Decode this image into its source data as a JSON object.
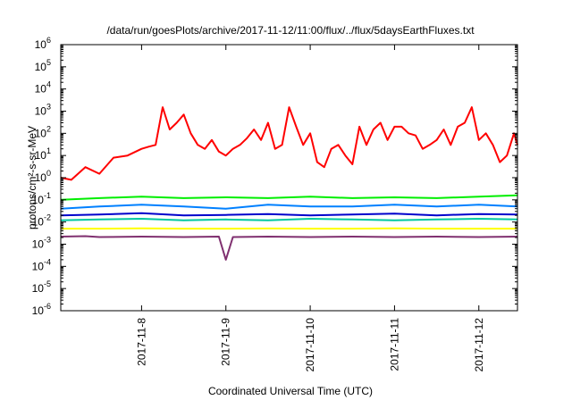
{
  "chart_data": {
    "type": "line",
    "title": "/data/run/goesPlots/archive/2017-11-12/11:00/flux/../flux/5daysEarthFluxes.txt",
    "xlabel": "Coordinated Universal Time (UTC)",
    "ylabel": "protons/cm²-s-sr-MeV",
    "y_scale": "log",
    "ylim_exponents": [
      -6,
      6
    ],
    "y_ticks": [
      {
        "base": "10",
        "exp": "-6"
      },
      {
        "base": "10",
        "exp": "-5"
      },
      {
        "base": "10",
        "exp": "-4"
      },
      {
        "base": "10",
        "exp": "-3"
      },
      {
        "base": "10",
        "exp": "-2"
      },
      {
        "base": "10",
        "exp": "-1"
      },
      {
        "base": "10",
        "exp": "0"
      },
      {
        "base": "10",
        "exp": "1"
      },
      {
        "base": "10",
        "exp": "2"
      },
      {
        "base": "10",
        "exp": "3"
      },
      {
        "base": "10",
        "exp": "4"
      },
      {
        "base": "10",
        "exp": "5"
      },
      {
        "base": "10",
        "exp": "6"
      }
    ],
    "x_ticks": [
      "2017-11-8",
      "2017-11-9",
      "2017-11-10",
      "2017-11-11",
      "2017-11-12"
    ],
    "xlim": [
      "2017-11-07T01:00",
      "2017-11-12T11:00"
    ],
    "grid": false,
    "legend": "none",
    "series": [
      {
        "color": "#ff0000",
        "x": [
          "2017-11-07T01:00",
          "2017-11-07T04:00",
          "2017-11-07T08:00",
          "2017-11-07T12:00",
          "2017-11-07T16:00",
          "2017-11-07T20:00",
          "2017-11-08T00:00",
          "2017-11-08T02:00",
          "2017-11-08T04:00",
          "2017-11-08T06:00",
          "2017-11-08T08:00",
          "2017-11-08T10:00",
          "2017-11-08T12:00",
          "2017-11-08T14:00",
          "2017-11-08T16:00",
          "2017-11-08T18:00",
          "2017-11-08T20:00",
          "2017-11-08T22:00",
          "2017-11-09T00:00",
          "2017-11-09T02:00",
          "2017-11-09T04:00",
          "2017-11-09T06:00",
          "2017-11-09T08:00",
          "2017-11-09T10:00",
          "2017-11-09T12:00",
          "2017-11-09T14:00",
          "2017-11-09T16:00",
          "2017-11-09T18:00",
          "2017-11-09T20:00",
          "2017-11-09T22:00",
          "2017-11-10T00:00",
          "2017-11-10T02:00",
          "2017-11-10T04:00",
          "2017-11-10T06:00",
          "2017-11-10T08:00",
          "2017-11-10T10:00",
          "2017-11-10T12:00",
          "2017-11-10T14:00",
          "2017-11-10T16:00",
          "2017-11-10T18:00",
          "2017-11-10T20:00",
          "2017-11-10T22:00",
          "2017-11-11T00:00",
          "2017-11-11T02:00",
          "2017-11-11T04:00",
          "2017-11-11T06:00",
          "2017-11-11T08:00",
          "2017-11-11T10:00",
          "2017-11-11T12:00",
          "2017-11-11T14:00",
          "2017-11-11T16:00",
          "2017-11-11T18:00",
          "2017-11-11T20:00",
          "2017-11-11T22:00",
          "2017-11-12T00:00",
          "2017-11-12T02:00",
          "2017-11-12T04:00",
          "2017-11-12T06:00",
          "2017-11-12T08:00",
          "2017-11-12T10:00",
          "2017-11-12T11:00"
        ],
        "y": [
          1,
          0.8,
          3,
          1.5,
          8,
          10,
          20,
          25,
          30,
          1500,
          150,
          300,
          700,
          100,
          30,
          20,
          50,
          15,
          10,
          20,
          30,
          60,
          150,
          50,
          300,
          20,
          30,
          1500,
          200,
          30,
          100,
          5,
          3,
          20,
          30,
          10,
          4,
          200,
          30,
          150,
          300,
          50,
          200,
          200,
          100,
          80,
          20,
          30,
          50,
          150,
          30,
          200,
          300,
          1500,
          50,
          100,
          30,
          5,
          10,
          100,
          30
        ]
      },
      {
        "color": "#00ee00",
        "x": [
          "2017-11-07T01:00",
          "2017-11-07T12:00",
          "2017-11-08T00:00",
          "2017-11-08T12:00",
          "2017-11-09T00:00",
          "2017-11-09T12:00",
          "2017-11-10T00:00",
          "2017-11-10T12:00",
          "2017-11-11T00:00",
          "2017-11-11T12:00",
          "2017-11-12T00:00",
          "2017-11-12T11:00"
        ],
        "y": [
          0.1,
          0.12,
          0.14,
          0.12,
          0.13,
          0.12,
          0.14,
          0.12,
          0.13,
          0.12,
          0.14,
          0.16
        ]
      },
      {
        "color": "#0080ff",
        "x": [
          "2017-11-07T01:00",
          "2017-11-07T12:00",
          "2017-11-08T00:00",
          "2017-11-08T12:00",
          "2017-11-09T00:00",
          "2017-11-09T12:00",
          "2017-11-10T00:00",
          "2017-11-10T12:00",
          "2017-11-11T00:00",
          "2017-11-11T12:00",
          "2017-11-12T00:00",
          "2017-11-12T11:00"
        ],
        "y": [
          0.04,
          0.05,
          0.06,
          0.05,
          0.04,
          0.06,
          0.05,
          0.05,
          0.06,
          0.05,
          0.06,
          0.05
        ]
      },
      {
        "color": "#0000cc",
        "x": [
          "2017-11-07T01:00",
          "2017-11-07T12:00",
          "2017-11-08T00:00",
          "2017-11-08T12:00",
          "2017-11-09T00:00",
          "2017-11-09T12:00",
          "2017-11-10T00:00",
          "2017-11-10T12:00",
          "2017-11-11T00:00",
          "2017-11-11T12:00",
          "2017-11-12T00:00",
          "2017-11-12T11:00"
        ],
        "y": [
          0.02,
          0.022,
          0.025,
          0.02,
          0.021,
          0.023,
          0.02,
          0.022,
          0.024,
          0.02,
          0.023,
          0.022
        ]
      },
      {
        "color": "#00c8a0",
        "x": [
          "2017-11-07T01:00",
          "2017-11-07T12:00",
          "2017-11-08T00:00",
          "2017-11-08T12:00",
          "2017-11-09T00:00",
          "2017-11-09T12:00",
          "2017-11-10T00:00",
          "2017-11-10T12:00",
          "2017-11-11T00:00",
          "2017-11-11T12:00",
          "2017-11-12T00:00",
          "2017-11-12T11:00"
        ],
        "y": [
          0.012,
          0.013,
          0.014,
          0.012,
          0.013,
          0.012,
          0.014,
          0.013,
          0.012,
          0.013,
          0.014,
          0.013
        ]
      },
      {
        "color": "#ffff00",
        "x": [
          "2017-11-07T01:00",
          "2017-11-07T12:00",
          "2017-11-08T00:00",
          "2017-11-08T12:00",
          "2017-11-09T00:00",
          "2017-11-09T12:00",
          "2017-11-10T00:00",
          "2017-11-10T12:00",
          "2017-11-11T00:00",
          "2017-11-11T12:00",
          "2017-11-12T00:00",
          "2017-11-12T11:00"
        ],
        "y": [
          0.005,
          0.005,
          0.0052,
          0.005,
          0.005,
          0.0051,
          0.005,
          0.005,
          0.0052,
          0.005,
          0.005,
          0.005
        ]
      },
      {
        "color": "#803070",
        "x": [
          "2017-11-07T01:00",
          "2017-11-07T08:00",
          "2017-11-07T12:00",
          "2017-11-08T00:00",
          "2017-11-08T12:00",
          "2017-11-08T22:00",
          "2017-11-09T00:00",
          "2017-11-09T02:00",
          "2017-11-09T12:00",
          "2017-11-10T00:00",
          "2017-11-10T12:00",
          "2017-11-11T00:00",
          "2017-11-11T12:00",
          "2017-11-12T00:00",
          "2017-11-12T11:00"
        ],
        "y": [
          0.0022,
          0.0023,
          0.0021,
          0.0022,
          0.0021,
          0.0022,
          0.0002,
          0.0021,
          0.0022,
          0.0021,
          0.0022,
          0.0021,
          0.0022,
          0.0021,
          0.0022
        ]
      }
    ]
  }
}
